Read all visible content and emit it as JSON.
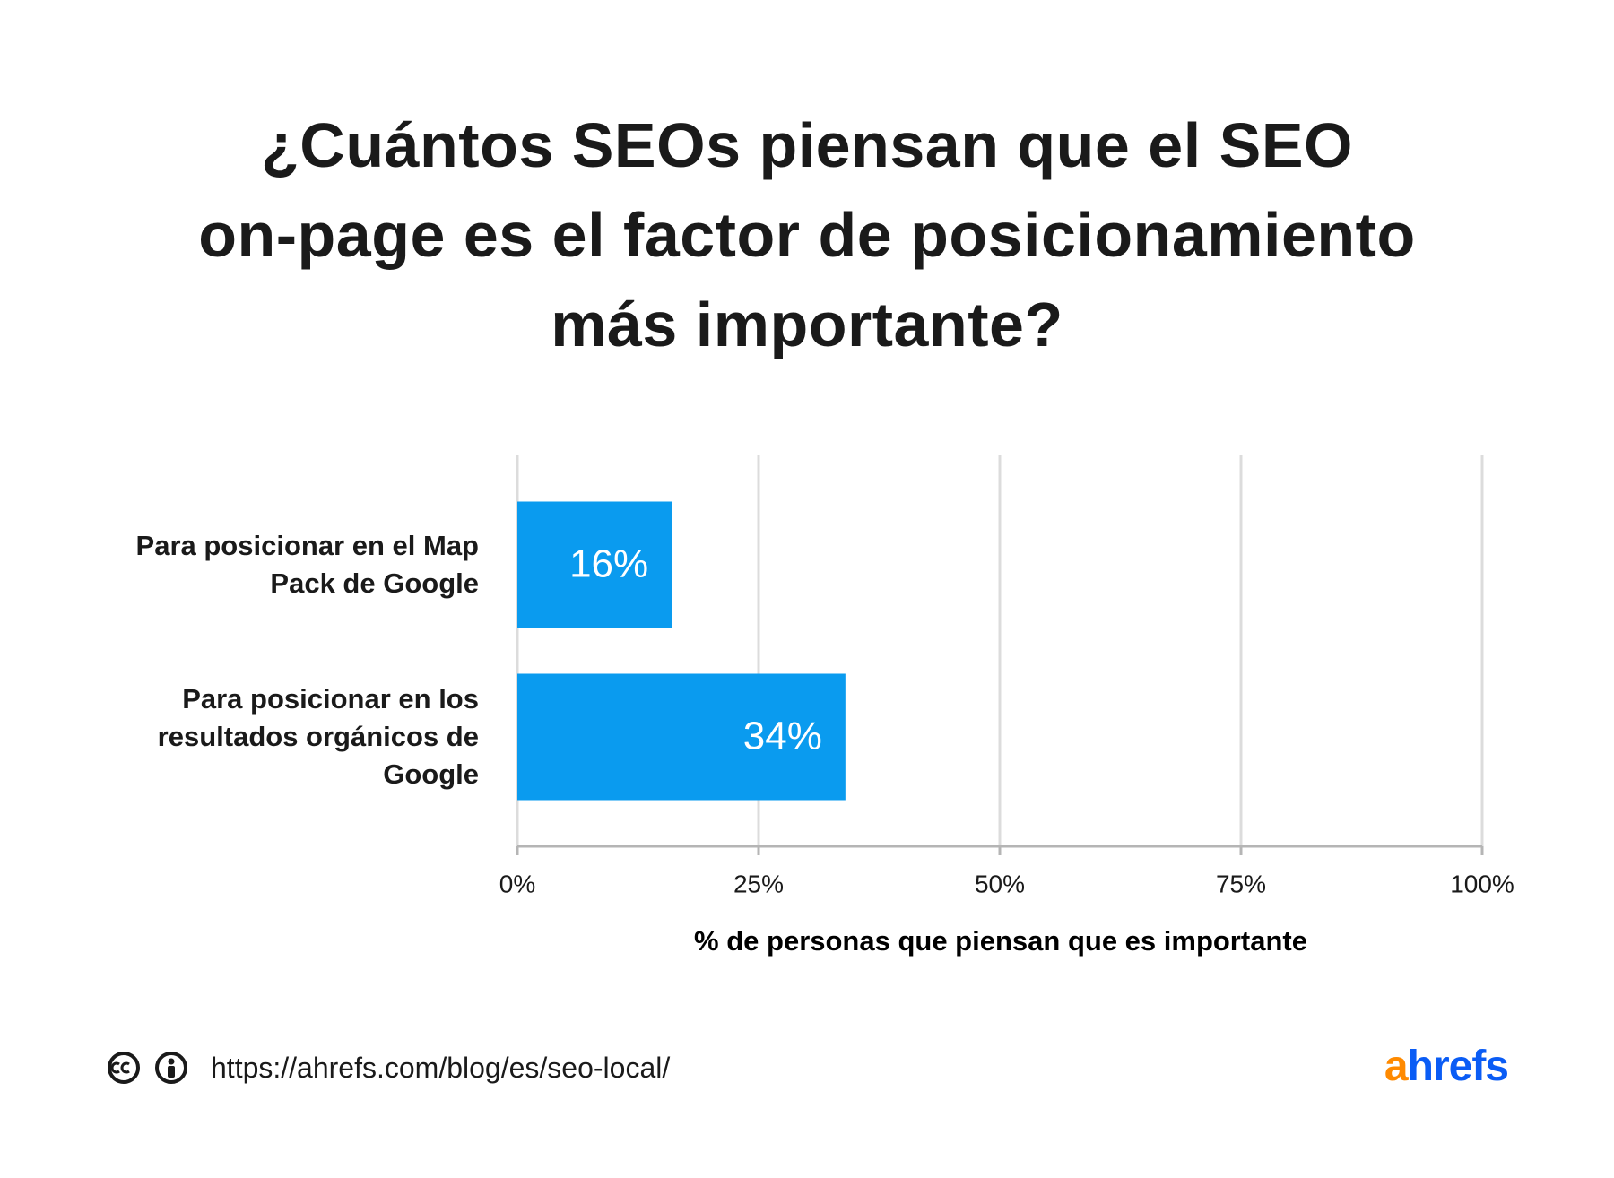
{
  "chart_data": {
    "type": "hbar",
    "title": [
      "¿Cuántos SEOs piensan que el SEO",
      "on-page es el factor de posicionamiento",
      "más importante?"
    ],
    "categories": [
      "Para posicionar en el Map Pack de Google",
      "Para posicionar en los resultados orgánicos de Google"
    ],
    "values": [
      16,
      34
    ],
    "value_labels": [
      "16%",
      "34%"
    ],
    "color": "#0a9bef",
    "xlim": [
      0,
      100
    ],
    "xticks": [
      {
        "value": 0,
        "label": "0%"
      },
      {
        "value": 25,
        "label": "25%"
      },
      {
        "value": 50,
        "label": "50%"
      },
      {
        "value": 75,
        "label": "75%"
      },
      {
        "value": 100,
        "label": "100%"
      }
    ],
    "xlabel": "% de personas que piensan que es importante",
    "grid": true
  },
  "footer": {
    "url": "https://ahrefs.com/blog/es/seo-local/",
    "logo": "ahrefs"
  }
}
